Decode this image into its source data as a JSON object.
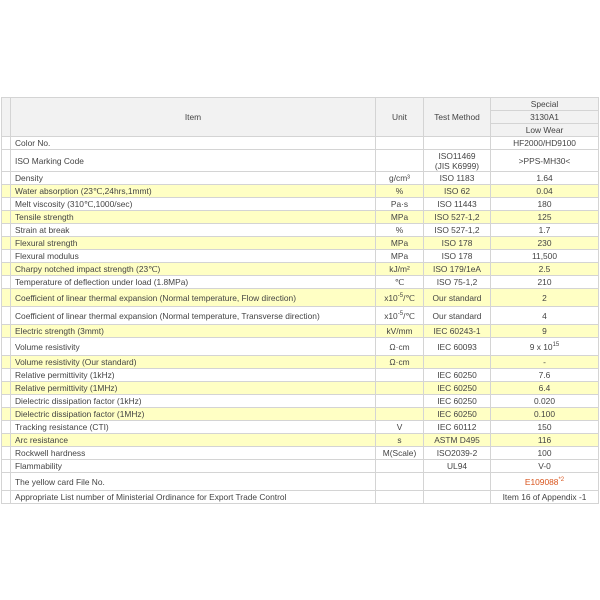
{
  "header": {
    "item": "Item",
    "unit": "Unit",
    "method": "Test Method",
    "grade": [
      "Special",
      "3130A1",
      "Low Wear"
    ]
  },
  "highlight_color": "#ffffc4",
  "rows": [
    {
      "item": "Color No.",
      "value": "HF2000/HD9100"
    },
    {
      "item": "ISO Marking Code",
      "method": [
        "ISO11469",
        "(JIS K6999)"
      ],
      "value": ">PPS-MH30<",
      "tall": 22
    },
    {
      "item": "Density",
      "unit": "g/cm³",
      "method": "ISO 1183",
      "value": "1.64"
    },
    {
      "item": "Water absorption (23℃,24hrs,1mmt)",
      "unit": "%",
      "method": "ISO 62",
      "value": "0.04",
      "highlight": true
    },
    {
      "item": "Melt viscosity (310℃,1000/sec)",
      "unit": "Pa·s",
      "method": "ISO 11443",
      "value": "180"
    },
    {
      "item": "Tensile strength",
      "unit": "MPa",
      "method": "ISO 527-1,2",
      "value": "125",
      "highlight": true
    },
    {
      "item": "Strain at break",
      "unit": "%",
      "method": "ISO 527-1,2",
      "value": "1.7"
    },
    {
      "item": "Flexural strength",
      "unit": "MPa",
      "method": "ISO 178",
      "value": "230",
      "highlight": true
    },
    {
      "item": "Flexural modulus",
      "unit": "MPa",
      "method": "ISO 178",
      "value": "11,500"
    },
    {
      "item": "Charpy notched impact strength (23℃)",
      "unit": "kJ/m²",
      "method": "ISO 179/1eA",
      "value": "2.5",
      "highlight": true
    },
    {
      "item": "Temperature of deflection under load (1.8MPa)",
      "unit": "℃",
      "method": "ISO 75-1,2",
      "value": "210"
    },
    {
      "item": "Coefficient of linear thermal expansion (Normal temperature, Flow direction)",
      "unit": {
        "base": "x10",
        "sup": "-5",
        "tail": "/℃"
      },
      "method": "Our standard",
      "value": "2",
      "highlight": true,
      "tall": 18
    },
    {
      "item": "Coefficient of linear thermal expansion (Normal temperature, Transverse direction)",
      "unit": {
        "base": "x10",
        "sup": "-5",
        "tail": "/℃"
      },
      "method": "Our standard",
      "value": "4",
      "tall": 18
    },
    {
      "item": "Electric strength (3mmt)",
      "unit": "kV/mm",
      "method": "IEC 60243-1",
      "value": "9",
      "highlight": true
    },
    {
      "item": "Volume resistivity",
      "unit": "Ω·cm",
      "method": "IEC 60093",
      "value": {
        "base": "9 x 10",
        "sup": "15"
      },
      "tall": 18
    },
    {
      "item": "Volume resistivity (Our standard)",
      "unit": "Ω·cm",
      "value": "-",
      "highlight": true
    },
    {
      "item": "Relative permittivity (1kHz)",
      "method": "IEC 60250",
      "value": "7.6"
    },
    {
      "item": "Relative permittivity (1MHz)",
      "method": "IEC 60250",
      "value": "6.4",
      "highlight": true
    },
    {
      "item": "Dielectric dissipation factor (1kHz)",
      "method": "IEC 60250",
      "value": "0.020"
    },
    {
      "item": "Dielectric dissipation factor (1MHz)",
      "method": "IEC 60250",
      "value": "0.100",
      "highlight": true
    },
    {
      "item": "Tracking resistance (CTI)",
      "unit": "V",
      "method": "IEC 60112",
      "value": "150"
    },
    {
      "item": "Arc resistance",
      "unit": "s",
      "method": "ASTM D495",
      "value": "116",
      "highlight": true
    },
    {
      "item": "Rockwell hardness",
      "unit": "M(Scale)",
      "method": "ISO2039-2",
      "value": "100"
    },
    {
      "item": "Flammability",
      "method": "UL94",
      "value": "V-0"
    },
    {
      "item": "The yellow card File No.",
      "value": {
        "base": "E109088",
        "sup": "*2",
        "color": "#d9541c"
      },
      "tall": 18
    },
    {
      "item": "Appropriate List number of Ministerial Ordinance for Export Trade Control",
      "value": "Item 16 of Appendix -1"
    }
  ]
}
